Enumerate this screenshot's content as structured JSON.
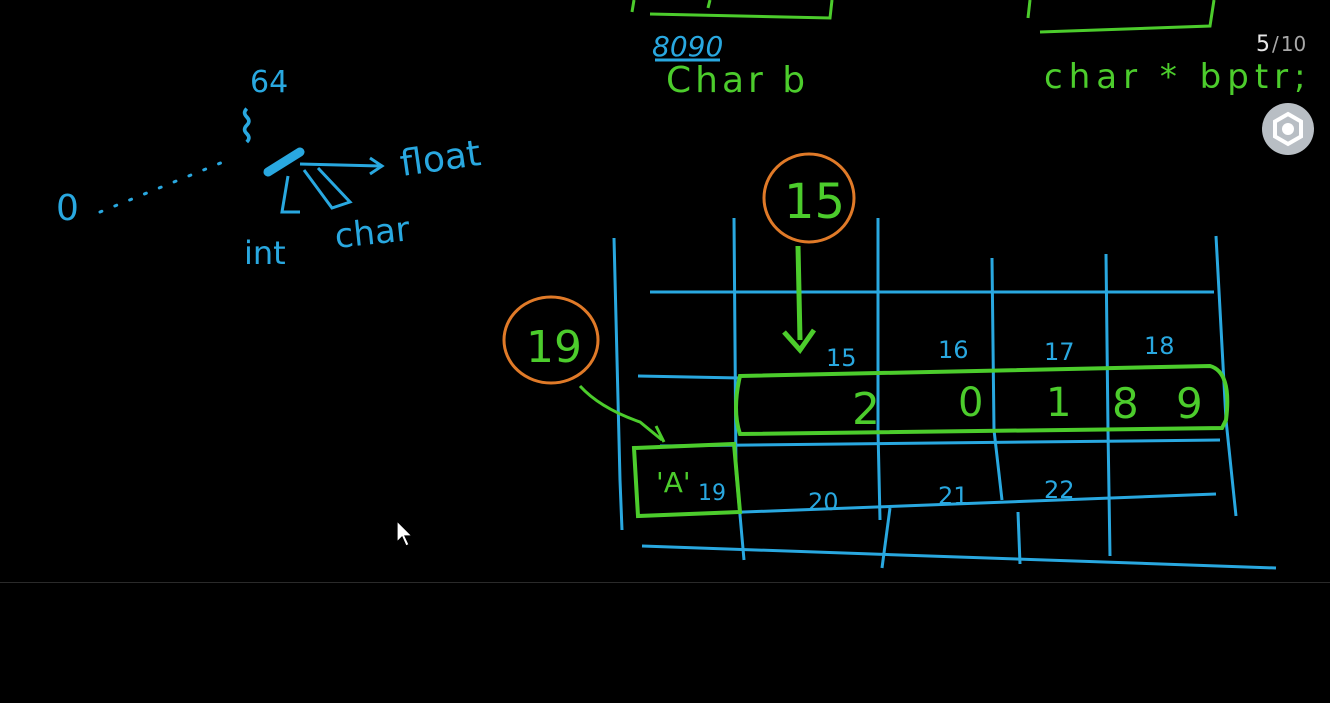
{
  "pagination": {
    "current": "5",
    "separator": "/",
    "total": "10"
  },
  "settings": {
    "icon": "settings-icon"
  },
  "colors": {
    "blue": "#29a8e0",
    "green": "#4ccc2c",
    "orange": "#e07a28",
    "background": "#000000"
  },
  "notes": {
    "top_mid_number": "8090",
    "top_mid_label": "Char b",
    "top_right_label": "char * bptr;",
    "size_label": "64",
    "float_label": "float",
    "int_label": "int",
    "char_label": "char",
    "zero_label": "0",
    "pointer_a_value": "15",
    "pointer_b_value": "19"
  },
  "memory": {
    "top_addresses": [
      "15",
      "16",
      "17",
      "18"
    ],
    "digits": [
      "2",
      "0",
      "1",
      "8",
      "9"
    ],
    "char_cell": "'A'",
    "bottom_addresses": [
      "19",
      "20",
      "21",
      "22"
    ]
  }
}
